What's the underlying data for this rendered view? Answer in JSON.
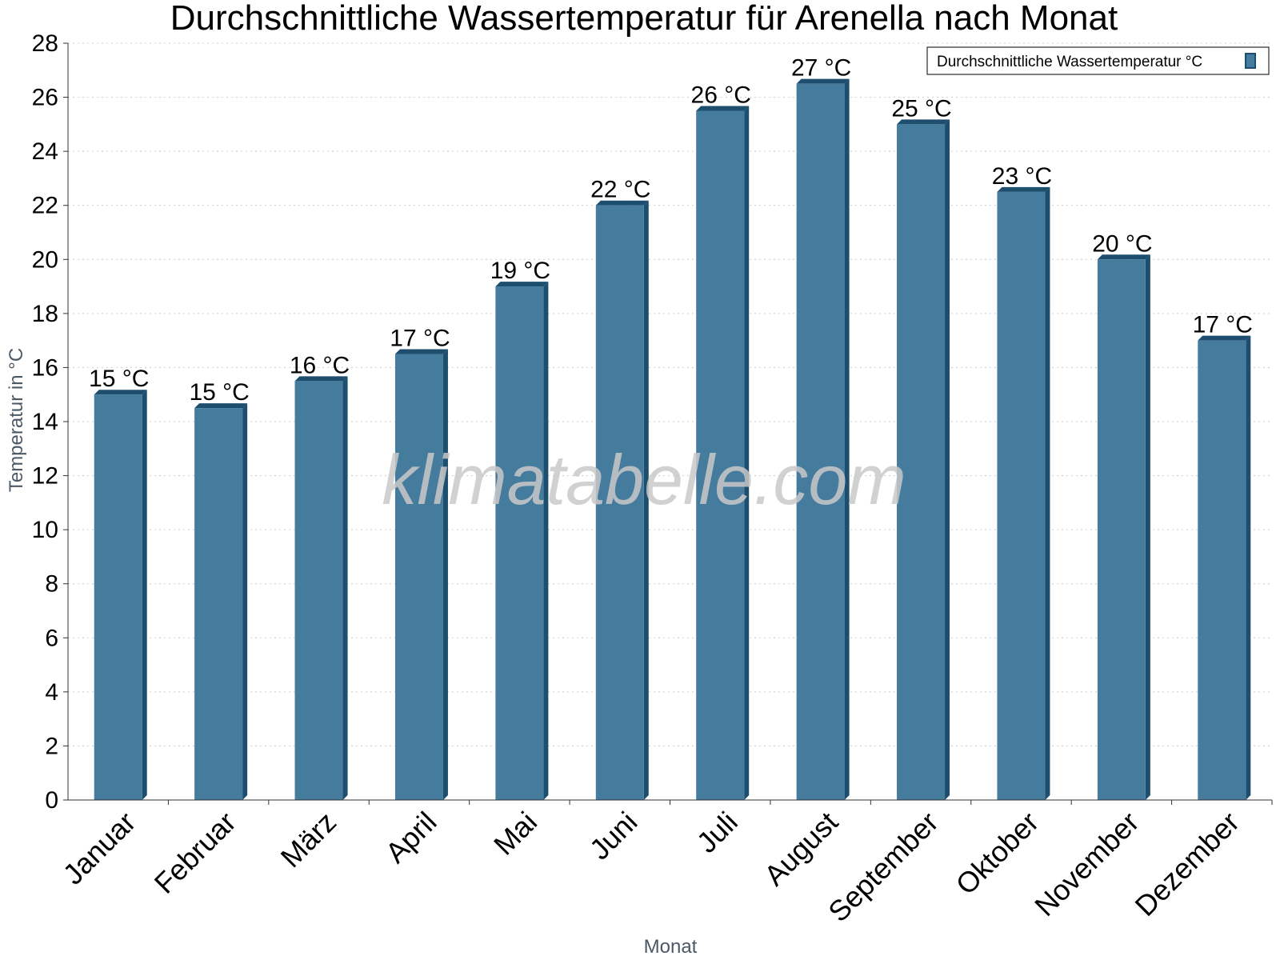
{
  "chart_data": {
    "type": "bar",
    "title": "Durchschnittliche Wassertemperatur für Arenella nach Monat",
    "xlabel": "Monat",
    "ylabel": "Temperatur in °C",
    "categories": [
      "Januar",
      "Februar",
      "März",
      "April",
      "Mai",
      "Juni",
      "Juli",
      "August",
      "September",
      "Oktober",
      "November",
      "Dezember"
    ],
    "series": [
      {
        "name": "Durchschnittliche Wassertemperatur °C",
        "values": [
          15,
          14.5,
          15.5,
          16.5,
          19,
          22,
          25.5,
          26.5,
          25,
          22.5,
          20,
          17
        ],
        "data_labels": [
          "15 °C",
          "15 °C",
          "16 °C",
          "17 °C",
          "19 °C",
          "22 °C",
          "26 °C",
          "27 °C",
          "25 °C",
          "23 °C",
          "20 °C",
          "17 °C"
        ]
      }
    ],
    "ylim": [
      0,
      28
    ],
    "yticks": [
      "0",
      "2",
      "4",
      "6",
      "8",
      "10",
      "12",
      "14",
      "16",
      "18",
      "20",
      "22",
      "24",
      "26",
      "28"
    ],
    "grid": true,
    "legend_position": "top-right",
    "colors": {
      "bar": "#457b9d",
      "bar_side": "#1d4e6e",
      "grid": "#cccccc",
      "axis": "#333333"
    }
  },
  "watermark": "klimatabelle.com"
}
